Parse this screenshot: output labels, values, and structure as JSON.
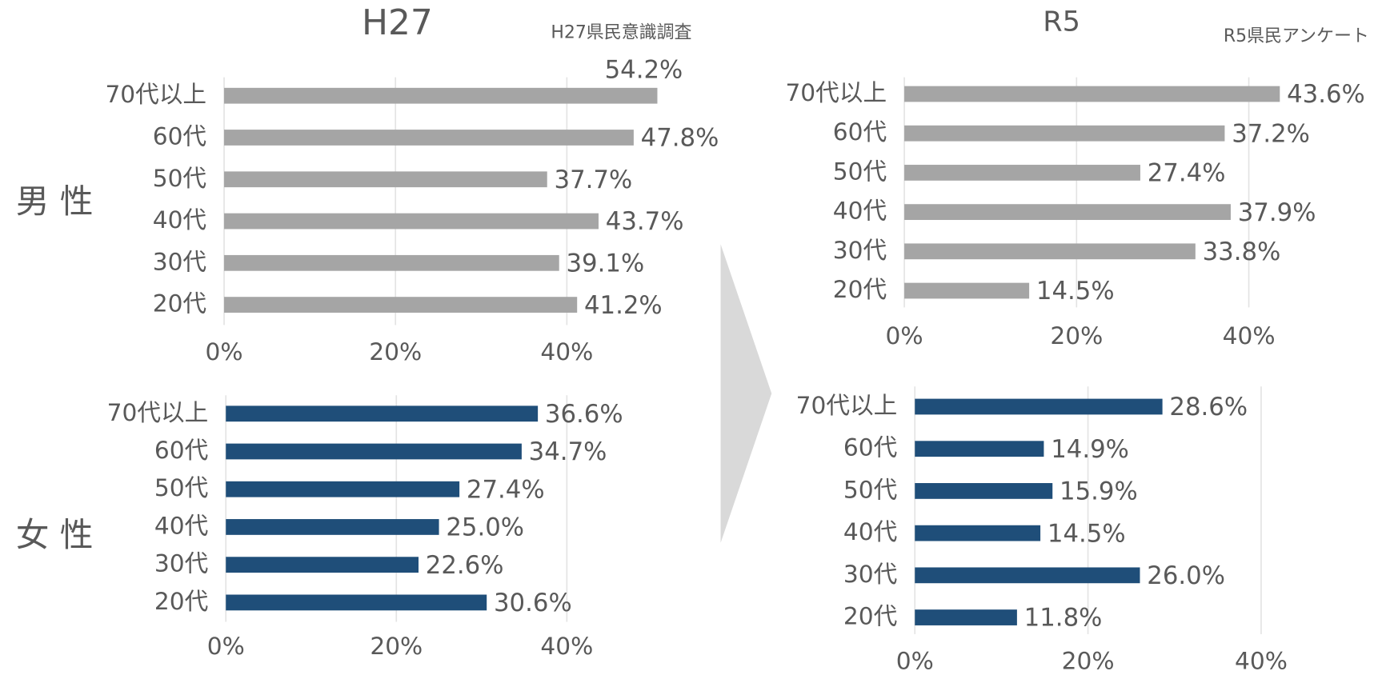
{
  "panels": [
    {
      "title": "H27",
      "source": "H27県民意識調査"
    },
    {
      "title": "R5",
      "source": "R5県民アンケート"
    }
  ],
  "groups": [
    "男 性",
    "女 性"
  ],
  "chart_data": [
    {
      "type": "bar",
      "orientation": "horizontal",
      "categories": [
        "70代以上",
        "60代",
        "50代",
        "40代",
        "30代",
        "20代"
      ],
      "values": [
        54.2,
        47.8,
        37.7,
        43.7,
        39.1,
        41.2
      ],
      "value_labels": [
        "54.2%",
        "47.8%",
        "37.7%",
        "43.7%",
        "39.1%",
        "41.2%"
      ],
      "color": "#a5a5a5",
      "xlim": [
        0,
        50
      ],
      "xticks": [
        {
          "value": 0,
          "label": "0%"
        },
        {
          "value": 20,
          "label": "20%"
        },
        {
          "value": 40,
          "label": "40%"
        }
      ],
      "grid": true
    },
    {
      "type": "bar",
      "orientation": "horizontal",
      "categories": [
        "70代以上",
        "60代",
        "50代",
        "40代",
        "30代",
        "20代"
      ],
      "values": [
        36.6,
        34.7,
        27.4,
        25.0,
        22.6,
        30.6
      ],
      "value_labels": [
        "36.6%",
        "34.7%",
        "27.4%",
        "25.0%",
        "22.6%",
        "30.6%"
      ],
      "color": "#1f4e79",
      "xlim": [
        0,
        50
      ],
      "xticks": [
        {
          "value": 0,
          "label": "0%"
        },
        {
          "value": 20,
          "label": "20%"
        },
        {
          "value": 40,
          "label": "40%"
        }
      ],
      "grid": true
    },
    {
      "type": "bar",
      "orientation": "horizontal",
      "categories": [
        "70代以上",
        "60代",
        "50代",
        "40代",
        "30代",
        "20代"
      ],
      "values": [
        43.6,
        37.2,
        27.4,
        37.9,
        33.8,
        14.5
      ],
      "value_labels": [
        "43.6%",
        "37.2%",
        "27.4%",
        "37.9%",
        "33.8%",
        "14.5%"
      ],
      "color": "#a5a5a5",
      "xlim": [
        0,
        50
      ],
      "xticks": [
        {
          "value": 0,
          "label": "0%"
        },
        {
          "value": 20,
          "label": "20%"
        },
        {
          "value": 40,
          "label": "40%"
        }
      ],
      "grid": true
    },
    {
      "type": "bar",
      "orientation": "horizontal",
      "categories": [
        "70代以上",
        "60代",
        "50代",
        "40代",
        "30代",
        "20代"
      ],
      "values": [
        28.6,
        14.9,
        15.9,
        14.5,
        26.0,
        11.8
      ],
      "value_labels": [
        "28.6%",
        "14.9%",
        "15.9%",
        "14.5%",
        "26.0%",
        "11.8%"
      ],
      "color": "#1f4e79",
      "xlim": [
        0,
        40
      ],
      "xticks": [
        {
          "value": 0,
          "label": "0%"
        },
        {
          "value": 20,
          "label": "20%"
        },
        {
          "value": 40,
          "label": "40%"
        }
      ],
      "grid": true
    }
  ]
}
